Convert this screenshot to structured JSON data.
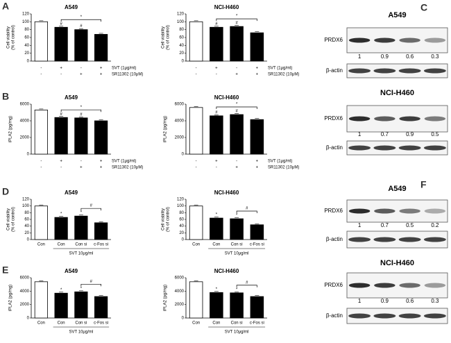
{
  "chart_data": [
    {
      "type": "bar",
      "panel": "A",
      "title": "A549",
      "ylabel": [
        "Cell viability",
        "(% of control)"
      ],
      "values": [
        100,
        86,
        80,
        68
      ],
      "colors": [
        "#ffffff",
        "#000000",
        "#000000",
        "#000000"
      ],
      "ylim": [
        0,
        120
      ],
      "yticks": [
        0,
        20,
        40,
        60,
        80,
        100,
        120
      ],
      "markers": [
        null,
        "#",
        "#",
        null
      ],
      "bracket_label": "*",
      "conditions": [
        {
          "name": "SVT (1μg/ml)",
          "values": [
            "-",
            "+",
            "-",
            "+"
          ]
        },
        {
          "name": "SR11302 (10μM)",
          "values": [
            "-",
            "-",
            "+",
            "+"
          ]
        }
      ]
    },
    {
      "type": "bar",
      "title": "NCI-H460",
      "ylabel": [
        "Cell viability",
        "(% of control)"
      ],
      "values": [
        100,
        86,
        88,
        72
      ],
      "colors": [
        "#ffffff",
        "#000000",
        "#000000",
        "#000000"
      ],
      "ylim": [
        0,
        120
      ],
      "yticks": [
        0,
        20,
        40,
        60,
        80,
        100,
        120
      ],
      "markers": [
        null,
        "#",
        "#",
        null
      ],
      "bracket_label": "*",
      "conditions": [
        {
          "name": "SVT (1μg/ml)",
          "values": [
            "-",
            "+",
            "-",
            "+"
          ]
        },
        {
          "name": "SR11302 (10μM)",
          "values": [
            "-",
            "-",
            "+",
            "+"
          ]
        }
      ]
    },
    {
      "type": "bar",
      "panel": "B",
      "title": "A549",
      "ylabel": [
        "iPLA2 (pg/mg)"
      ],
      "values": [
        5300,
        4400,
        4350,
        4000
      ],
      "colors": [
        "#ffffff",
        "#000000",
        "#000000",
        "#000000"
      ],
      "ylim": [
        0,
        6000
      ],
      "yticks": [
        0,
        2000,
        4000,
        6000
      ],
      "markers": [
        null,
        "#",
        "#",
        null
      ],
      "bracket_label": "*",
      "conditions": [
        {
          "name": "SVT (1μg/ml)",
          "values": [
            "-",
            "+",
            "-",
            "+"
          ]
        },
        {
          "name": "SR11302 (10μM)",
          "values": [
            "-",
            "-",
            "+",
            "+"
          ]
        }
      ]
    },
    {
      "type": "bar",
      "title": "NCI-H460",
      "ylabel": [
        "iPLA2 (pg/mg)"
      ],
      "values": [
        5600,
        4600,
        4750,
        4150
      ],
      "colors": [
        "#ffffff",
        "#000000",
        "#000000",
        "#000000"
      ],
      "ylim": [
        0,
        6000
      ],
      "yticks": [
        0,
        2000,
        4000,
        6000
      ],
      "markers": [
        null,
        "#",
        "#",
        null
      ],
      "bracket_label": "*",
      "conditions": [
        {
          "name": "SVT (1μg/ml)",
          "values": [
            "-",
            "+",
            "-",
            "+"
          ]
        },
        {
          "name": "SR11302 (10μM)",
          "values": [
            "-",
            "-",
            "+",
            "+"
          ]
        }
      ]
    },
    {
      "type": "bar",
      "panel": "D",
      "title": "A549",
      "ylabel": [
        "Cell viability",
        "(% of control)"
      ],
      "categories": [
        "Con",
        "Con",
        "Con si",
        "c-Fos si"
      ],
      "group_label": "SVT 10μg/ml",
      "values": [
        100,
        66,
        70,
        50
      ],
      "colors": [
        "#ffffff",
        "#000000",
        "#000000",
        "#000000"
      ],
      "ylim": [
        0,
        120
      ],
      "yticks": [
        0,
        20,
        40,
        60,
        80,
        100,
        120
      ],
      "markers": [
        null,
        "*",
        "*",
        null
      ],
      "bracket_label": "#"
    },
    {
      "type": "bar",
      "title": "NCI-H460",
      "ylabel": [
        "Cell viability",
        "(% of control)"
      ],
      "categories": [
        "Con",
        "Con",
        "Con si",
        "c-Fos si"
      ],
      "group_label": "SVT 10μg/ml",
      "values": [
        100,
        64,
        62,
        44
      ],
      "colors": [
        "#ffffff",
        "#000000",
        "#000000",
        "#000000"
      ],
      "ylim": [
        0,
        120
      ],
      "yticks": [
        0,
        20,
        40,
        60,
        80,
        100,
        120
      ],
      "markers": [
        null,
        "*",
        "*",
        null
      ],
      "bracket_label": "#"
    },
    {
      "type": "bar",
      "panel": "E",
      "title": "A549",
      "ylabel": [
        "iPLA2 (pg/mg)"
      ],
      "categories": [
        "Con",
        "Con",
        "Con si",
        "c-Fos si"
      ],
      "group_label": "SVT 10μg/ml",
      "values": [
        5400,
        3700,
        3900,
        3200
      ],
      "colors": [
        "#ffffff",
        "#000000",
        "#000000",
        "#000000"
      ],
      "ylim": [
        0,
        6000
      ],
      "yticks": [
        0,
        2000,
        4000,
        6000
      ],
      "markers": [
        null,
        "*",
        "*",
        null
      ],
      "bracket_label": "#"
    },
    {
      "type": "bar",
      "title": "NCI-H460",
      "ylabel": [
        "iPLA2 (pg/mg)"
      ],
      "categories": [
        "Con",
        "Con",
        "Con si",
        "c-Fos si"
      ],
      "group_label": "SVT 10μg/ml",
      "values": [
        5400,
        3800,
        3750,
        3200
      ],
      "colors": [
        "#ffffff",
        "#000000",
        "#000000",
        "#000000"
      ],
      "ylim": [
        0,
        6000
      ],
      "yticks": [
        0,
        2000,
        4000,
        6000
      ],
      "markers": [
        null,
        "*",
        "*",
        null
      ],
      "bracket_label": "#"
    }
  ],
  "blots": [
    {
      "panel": "C",
      "sections": [
        {
          "title": "A549",
          "protein": "PRDX6",
          "quant": [
            1,
            0.9,
            0.6,
            0.3
          ],
          "control": "β-actin"
        },
        {
          "title": "NCI-H460",
          "protein": "PRDX6",
          "quant": [
            1,
            0.7,
            0.9,
            0.5
          ],
          "control": "β-actin"
        }
      ]
    },
    {
      "panel": "F",
      "sections": [
        {
          "title": "A549",
          "protein": "PRDX6",
          "quant": [
            1,
            0.7,
            0.5,
            0.2
          ],
          "control": "β-actin"
        },
        {
          "title": "NCI-H460",
          "protein": "PRDX6",
          "quant": [
            1,
            0.9,
            0.6,
            0.3
          ],
          "control": "β-actin"
        }
      ]
    }
  ]
}
